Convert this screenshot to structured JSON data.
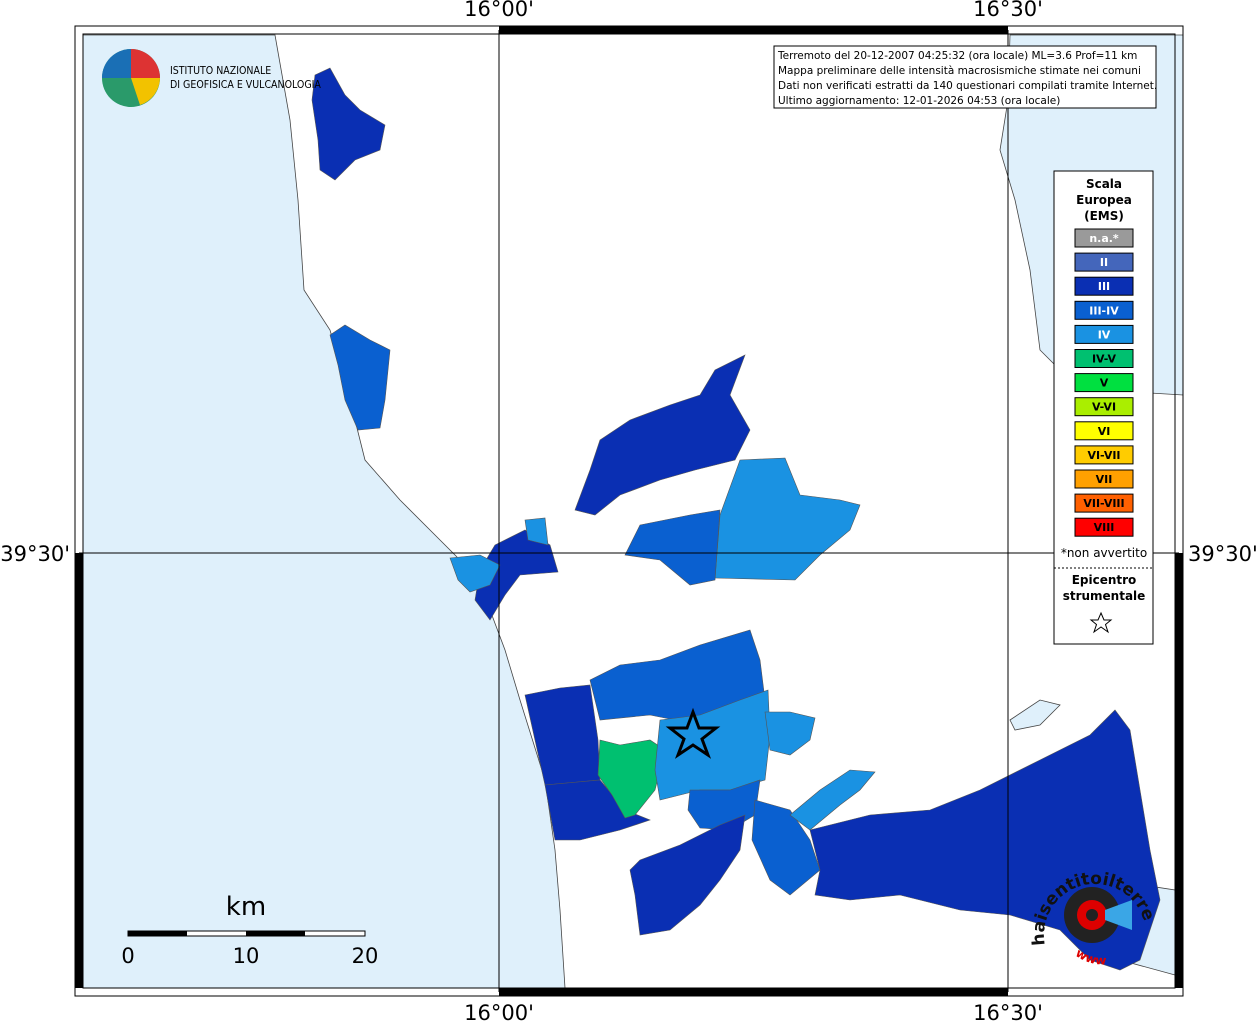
{
  "map": {
    "lon_labels": [
      "16°00'",
      "16°30'"
    ],
    "lat_labels": [
      "39°30'"
    ],
    "info": [
      "Terremoto del 20-12-2007 04:25:32 (ora locale) ML=3.6 Prof=11 km",
      "Mappa preliminare delle intensità macrosismiche stimate nei comuni",
      "Dati non verificati estratti da 140 questionari compilati tramite Internet.",
      "Ultimo aggiornamento: 12-01-2026 04:53 (ora locale)"
    ],
    "logo": [
      "ISTITUTO NAZIONALE",
      "DI GEOFISICA E VULCANOLOGIA"
    ],
    "scale": {
      "unit": "km",
      "labels": [
        "0",
        "10",
        "20"
      ]
    },
    "watermark": {
      "site": "haisentitoilterremoto.it",
      "www": "www"
    }
  },
  "legend": {
    "title": [
      "Scala",
      "Europea",
      "(EMS)"
    ],
    "items": [
      {
        "label": "n.a.*",
        "color": "#9a9a9a"
      },
      {
        "label": "II",
        "color": "#4466bb"
      },
      {
        "label": "III",
        "color": "#0a2fb3"
      },
      {
        "label": "III-IV",
        "color": "#0a60d0"
      },
      {
        "label": "IV",
        "color": "#1a92e2"
      },
      {
        "label": "IV-V",
        "color": "#00c070"
      },
      {
        "label": "V",
        "color": "#00e040"
      },
      {
        "label": "V-VI",
        "color": "#aaee00"
      },
      {
        "label": "VI",
        "color": "#ffff00"
      },
      {
        "label": "VI-VII",
        "color": "#ffcc00"
      },
      {
        "label": "VII",
        "color": "#ffa000"
      },
      {
        "label": "VII-VIII",
        "color": "#ff6000"
      },
      {
        "label": "VIII",
        "color": "#ff0000"
      }
    ],
    "note": "*non avvertito",
    "epicenter": [
      "Epicentro",
      "strumentale"
    ]
  }
}
